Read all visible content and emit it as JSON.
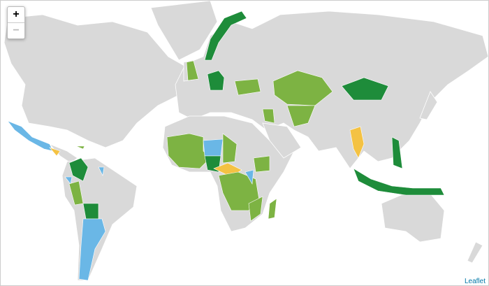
{
  "controls": {
    "zoom_in": "+",
    "zoom_out": "−"
  },
  "attribution": "Leaflet",
  "colors": {
    "land": "#d9d9d9",
    "dark_green": "#1e8c3a",
    "light_green": "#7db343",
    "blue": "#6ab7e6",
    "yellow": "#f4c243"
  }
}
